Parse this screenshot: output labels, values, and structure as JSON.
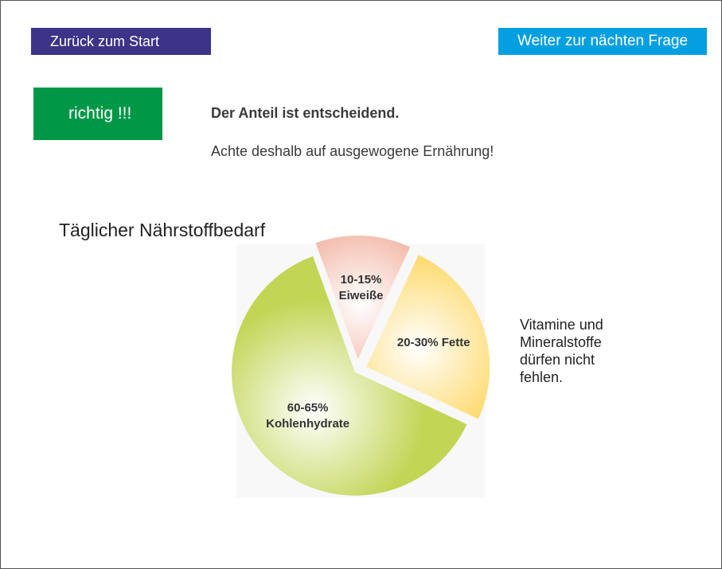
{
  "nav": {
    "back_label": "Zurück zum Start",
    "next_label": "Weiter zur nächten Frage"
  },
  "result": {
    "label": "richtig !!!",
    "color": "#009846"
  },
  "message": {
    "heading": "Der Anteil ist entscheidend.",
    "text": "Achte deshalb auf ausgewogene Ernährung!"
  },
  "note": {
    "text": "Vitamine und Mineralstoffe dürfen nicht fehlen."
  },
  "chart_data": {
    "type": "pie",
    "title": "Täglicher Nährstoffbedarf",
    "slices": [
      {
        "name": "Eiweiße",
        "range": "10-15%",
        "value": 12.5,
        "label_lines": [
          "10-15%",
          "Eiweiße"
        ],
        "color": "#ee9a82"
      },
      {
        "name": "Fette",
        "range": "20-30%",
        "value": 25,
        "label_lines": [
          "20-30% Fette"
        ],
        "color": "#fdd24f"
      },
      {
        "name": "Kohlenhydrate",
        "range": "60-65%",
        "value": 62.5,
        "label_lines": [
          "60-65%",
          "Kohlenhydrate"
        ],
        "color": "#c2d555"
      }
    ]
  }
}
